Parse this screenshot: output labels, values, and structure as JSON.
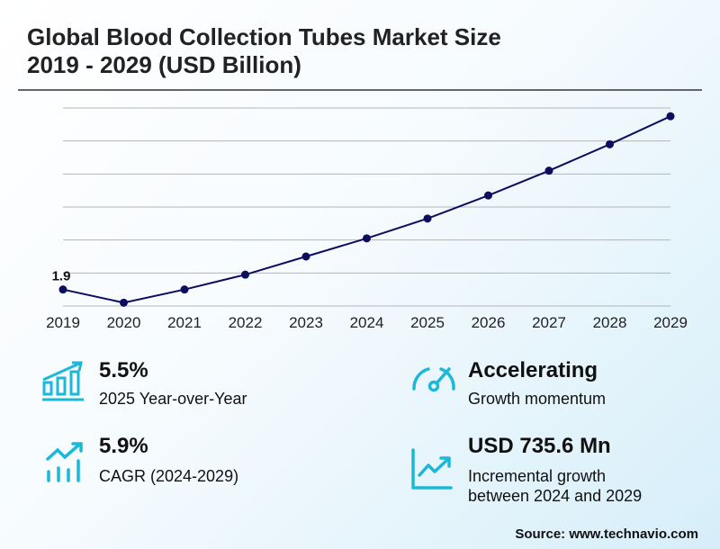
{
  "title_line1": "Global Blood Collection Tubes Market Size",
  "title_line2": "2019 - 2029 (USD Billion)",
  "chart_data": {
    "type": "line",
    "title": "Global Blood Collection Tubes Market Size 2019 - 2029 (USD Billion)",
    "categories": [
      "2019",
      "2020",
      "2021",
      "2022",
      "2023",
      "2024",
      "2025",
      "2026",
      "2027",
      "2028",
      "2029"
    ],
    "values": [
      1.9,
      1.82,
      1.9,
      1.99,
      2.1,
      2.21,
      2.33,
      2.47,
      2.62,
      2.78,
      2.95
    ],
    "data_labels": [
      {
        "index": 0,
        "text": "1.9"
      }
    ],
    "ylim": [
      1.8,
      3.0
    ],
    "grid": true,
    "line_color": "#0d0d5e"
  },
  "stats": [
    {
      "value": "5.5%",
      "label": "2025 Year-over-Year",
      "icon": "bar-chart-growth-icon"
    },
    {
      "value": "Accelerating",
      "label": "Growth momentum",
      "icon": "speedometer-icon"
    },
    {
      "value": "5.9%",
      "label": "CAGR (2024-2029)",
      "icon": "trend-bars-icon"
    },
    {
      "value": "USD 735.6 Mn",
      "label_line1": "Incremental growth",
      "label_line2": "between 2024 and 2029",
      "icon": "line-chart-up-icon"
    }
  ],
  "icon_color": "#1cb8d8",
  "source": "Source: www.technavio.com"
}
